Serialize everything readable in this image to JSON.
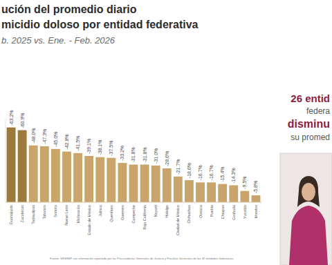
{
  "chart_data": {
    "type": "bar",
    "title": "ución del promedio diario",
    "subtitle": "micidio doloso por entidad federativa",
    "annotations": [
      "b. 2025 vs. Ene. - Feb. 2026",
      "26 entid",
      "federa",
      "disminu",
      "su promed",
      "Fuente: SESNSP con información reportada por las Procuradurías Generales de Justicia y Fiscalías Generales de las 32 entidades federativas."
    ],
    "categories": [
      "Guanajuato",
      "Zacatecas",
      "Tamaulipas",
      "Tabasco",
      "Sonora",
      "Nuevo León",
      "Michoacán",
      "Estado de México",
      "Jalisco",
      "Querétaro",
      "Guerrero",
      "Campeche",
      "Baja California",
      "Nayarit",
      "Hidalgo",
      "Ciudad de México",
      "Chihuahua",
      "Oaxaca",
      "Puebla",
      "Chiapas",
      "Coahuila",
      "Yucatán",
      "Morelos"
    ],
    "values": [
      -63.2,
      -60.9,
      -48.0,
      -47.3,
      -45.0,
      -42.8,
      -41.5,
      -39.1,
      -38.1,
      -37.5,
      -33.2,
      -31.8,
      -31.8,
      -31.0,
      -28.6,
      -21.7,
      -18.6,
      -16.7,
      -16.7,
      -15.4,
      -14.3,
      -9.5,
      -5.8
    ],
    "value_labels": [
      "-63.2%",
      "-60.9%",
      "-48.0%",
      "-47.3%",
      "-45.0%",
      "-42.8%",
      "-41.5%",
      "-39.1%",
      "-38.1%",
      "-37.5%",
      "-33.2%",
      "-31.8%",
      "-31.8%",
      "-31.0%",
      "-28.6%",
      "-21.7%",
      "-18.6%",
      "-16.7%",
      "-16.7%",
      "-15.4%",
      "-14.3%",
      "-9.5%",
      "-5.8%"
    ],
    "colors": [
      "#9c7a3c",
      "#9c7a3c",
      "#c9a56c",
      "#c9a56c",
      "#c9a56c",
      "#c9a56c",
      "#c9a56c",
      "#c9a56c",
      "#c9a56c",
      "#c9a56c",
      "#c9a56c",
      "#c9a56c",
      "#c9a56c",
      "#c9a56c",
      "#c9a56c",
      "#c9a56c",
      "#c9a56c",
      "#c9a56c",
      "#c9a56c",
      "#c9a56c",
      "#c9a56c",
      "#c9a56c",
      "#c9a56c"
    ],
    "ylim": [
      0,
      -70
    ],
    "grid": false,
    "data_labels": true,
    "tick_labels": "x"
  }
}
